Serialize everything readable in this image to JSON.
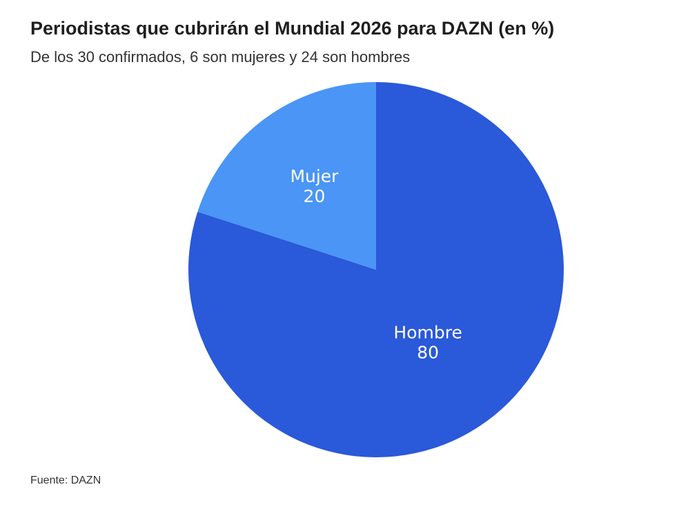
{
  "header": {
    "title": "Periodistas que cubrirán el Mundial 2026 para DAZN (en %)",
    "subtitle": "De los 30 confirmados, 6 son mujeres y 24 son hombres"
  },
  "footer": {
    "source": "Fuente: DAZN"
  },
  "chart_data": {
    "type": "pie",
    "title": "Periodistas que cubrirán el Mundial 2026 para DAZN (en %)",
    "subtitle": "De los 30 confirmados, 6 son mujeres y 24 son hombres",
    "start": "12 o'clock",
    "direction": "clockwise",
    "slices": [
      {
        "name": "Hombre",
        "value": 80,
        "label": "80",
        "color": "#2a59d9"
      },
      {
        "name": "Mujer",
        "value": 20,
        "label": "20",
        "color": "#4a95f5"
      }
    ]
  }
}
